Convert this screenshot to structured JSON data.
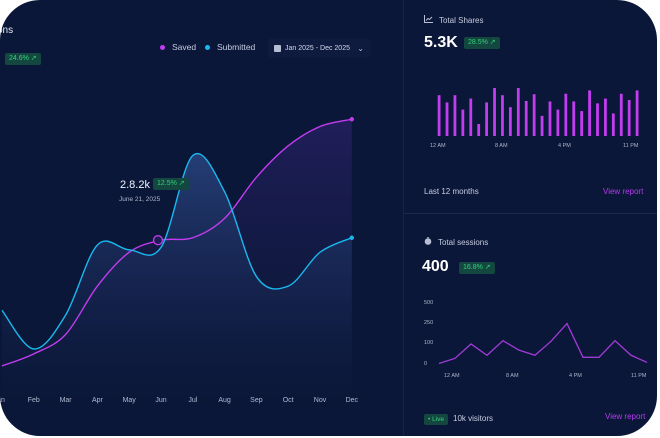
{
  "main_card": {
    "title_partial": "tions",
    "change_badge": "24.6% ↗",
    "legend": [
      {
        "label": "Saved",
        "color": "#c23cf0"
      },
      {
        "label": "Submitted",
        "color": "#19b9f0"
      }
    ],
    "date_range": "Jan 2025 - Dec 2025",
    "tooltip": {
      "value": "2.8.2k",
      "badge": "12.5% ↗",
      "date": "June 21, 2025"
    }
  },
  "chart_data": [
    {
      "type": "area",
      "title": "",
      "categories": [
        "Jan",
        "Feb",
        "Mar",
        "Apr",
        "May",
        "Jun",
        "Jul",
        "Aug",
        "Sep",
        "Oct",
        "Nov",
        "Dec"
      ],
      "x_labels_shown": [
        "an",
        "Feb",
        "Mar",
        "Apr",
        "May",
        "Jun",
        "Jul",
        "Aug",
        "Sep",
        "Oct",
        "Nov",
        "Dec"
      ],
      "series": [
        {
          "name": "Saved",
          "color": "#c23cf0",
          "values": [
            0.5,
            1.0,
            1.8,
            3.8,
            5.2,
            5.7,
            5.8,
            6.6,
            8.3,
            9.6,
            10.4,
            10.7
          ]
        },
        {
          "name": "Submitted",
          "color": "#19b9f0",
          "values": [
            2.8,
            1.2,
            2.6,
            5.5,
            5.3,
            5.4,
            9.2,
            7.7,
            4.2,
            3.8,
            5.2,
            5.8
          ]
        }
      ],
      "highlight": {
        "series": "Saved",
        "category": "Jun"
      },
      "grid": false
    },
    {
      "type": "bar",
      "title": "Total Shares",
      "x_labels": [
        "12 AM",
        "8 AM",
        "4 PM",
        "11 PM"
      ],
      "values": [
        0.85,
        0.7,
        0.85,
        0.55,
        0.78,
        0.25,
        0.7,
        1.0,
        0.85,
        0.6,
        1.0,
        0.73,
        0.87,
        0.42,
        0.72,
        0.55,
        0.88,
        0.72,
        0.52,
        0.95,
        0.68,
        0.78,
        0.47,
        0.88,
        0.75,
        0.95
      ],
      "color": "#c23cf0"
    },
    {
      "type": "line",
      "title": "Total sessions",
      "y_ticks": [
        "500",
        "250",
        "100",
        "0"
      ],
      "x_labels": [
        "12 AM",
        "8 AM",
        "4 PM",
        "11 PM"
      ],
      "values": [
        5,
        30,
        100,
        45,
        125,
        70,
        45,
        120,
        255,
        35,
        35,
        125,
        45,
        10
      ],
      "color": "#a23ad8"
    }
  ],
  "shares_card": {
    "title": "Total Shares",
    "value": "5.3K",
    "badge": "28.5% ↗",
    "footer": "Last 12 months",
    "link": "View report"
  },
  "sessions_card": {
    "title": "Total sessions",
    "value": "400",
    "badge": "16.8% ↗",
    "live": "• Live",
    "visitors": "10k visitors",
    "link": "View report"
  }
}
